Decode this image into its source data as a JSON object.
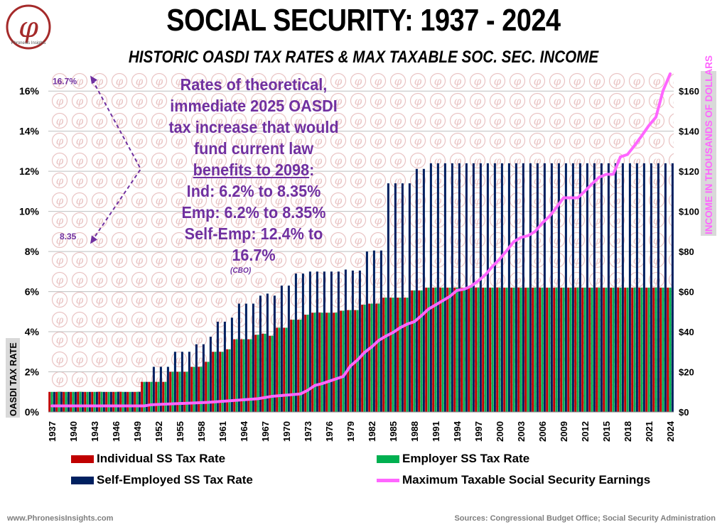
{
  "title": "SOCIAL SECURITY: 1937 - 2024",
  "subtitle": "HISTORIC OASDI TAX RATES & MAX TAXABLE SOC. SEC. INCOME",
  "logo": {
    "symbol": "φ",
    "text": "Phronesis Insights"
  },
  "annotation": {
    "lines": [
      "Rates of theoretical,",
      "immediate 2025 OASDI",
      "tax increase that would",
      "fund current law"
    ],
    "underlined": "benefits to 2098",
    "underlined_suffix": ":",
    "ind": "Ind: 6.2% to 8.35%",
    "emp": "Emp: 6.2% to 8.35%",
    "self": "Self-Emp: 12.4% to 16.7%",
    "source": "(CBO)",
    "marker_top": "16.7%",
    "marker_bottom": "8.35"
  },
  "legend": {
    "individual": "Individual SS Tax Rate",
    "employer": "Employer SS Tax Rate",
    "self": "Self-Employed SS Tax Rate",
    "max": "Maximum Taxable Social Security Earnings"
  },
  "footer": {
    "left": "www.PhronesisInsights.com",
    "right": "Sources: Congressional Budget Office; Social Security Administration"
  },
  "colors": {
    "individual": "#c00000",
    "employer": "#00b050",
    "self": "#002060",
    "max": "#ff66ff",
    "purple": "#7030a0"
  },
  "chart_data": {
    "type": "bar",
    "title": "SOCIAL SECURITY: 1937 - 2024",
    "ylabel": "OASDI TAX RATE",
    "y2label": "INCOME  IN THOUSANDS OF DOLLARS",
    "ylim": [
      0,
      17
    ],
    "y2lim": [
      0,
      170
    ],
    "yticks": [
      "0%",
      "2%",
      "4%",
      "6%",
      "8%",
      "10%",
      "12%",
      "14%",
      "16%"
    ],
    "y2ticks": [
      "$0",
      "$20",
      "$40",
      "$60",
      "$80",
      "$100",
      "$120",
      "$140",
      "$160"
    ],
    "xticks": [
      "1937",
      "1940",
      "1943",
      "1946",
      "1949",
      "1952",
      "1955",
      "1958",
      "1961",
      "1964",
      "1967",
      "1970",
      "1973",
      "1976",
      "1979",
      "1982",
      "1985",
      "1988",
      "1991",
      "1994",
      "1997",
      "2000",
      "2003",
      "2006",
      "2009",
      "2012",
      "2015",
      "2018",
      "2021",
      "2024"
    ],
    "start_year": 1937,
    "end_year": 2024,
    "rate_changes": [
      {
        "from": 1937,
        "ind": 1.0,
        "self": 1.0
      },
      {
        "from": 1950,
        "ind": 1.5,
        "self": 1.5
      },
      {
        "from": 1951,
        "ind": 1.5,
        "self": 2.25
      },
      {
        "from": 1954,
        "ind": 2.0,
        "self": 3.0
      },
      {
        "from": 1957,
        "ind": 2.25,
        "self": 3.375
      },
      {
        "from": 1959,
        "ind": 2.5,
        "self": 3.75
      },
      {
        "from": 1960,
        "ind": 3.0,
        "self": 4.5
      },
      {
        "from": 1962,
        "ind": 3.125,
        "self": 4.7
      },
      {
        "from": 1963,
        "ind": 3.625,
        "self": 5.4
      },
      {
        "from": 1966,
        "ind": 3.85,
        "self": 5.8
      },
      {
        "from": 1967,
        "ind": 3.9,
        "self": 5.9
      },
      {
        "from": 1968,
        "ind": 3.8,
        "self": 5.8
      },
      {
        "from": 1969,
        "ind": 4.2,
        "self": 6.3
      },
      {
        "from": 1971,
        "ind": 4.6,
        "self": 6.9
      },
      {
        "from": 1973,
        "ind": 4.85,
        "self": 7.0
      },
      {
        "from": 1974,
        "ind": 4.95,
        "self": 7.0
      },
      {
        "from": 1978,
        "ind": 5.05,
        "self": 7.1
      },
      {
        "from": 1979,
        "ind": 5.08,
        "self": 7.05
      },
      {
        "from": 1981,
        "ind": 5.35,
        "self": 8.0
      },
      {
        "from": 1982,
        "ind": 5.4,
        "self": 8.05
      },
      {
        "from": 1984,
        "ind": 5.7,
        "self": 11.4
      },
      {
        "from": 1988,
        "ind": 6.06,
        "self": 12.12
      },
      {
        "from": 1990,
        "ind": 6.2,
        "self": 12.4
      }
    ],
    "max_taxable": [
      {
        "year": 1937,
        "value": 3.0
      },
      {
        "year": 1950,
        "value": 3.0
      },
      {
        "year": 1951,
        "value": 3.6
      },
      {
        "year": 1955,
        "value": 4.2
      },
      {
        "year": 1959,
        "value": 4.8
      },
      {
        "year": 1966,
        "value": 6.6
      },
      {
        "year": 1968,
        "value": 7.8
      },
      {
        "year": 1972,
        "value": 9.0
      },
      {
        "year": 1973,
        "value": 10.8
      },
      {
        "year": 1974,
        "value": 13.2
      },
      {
        "year": 1975,
        "value": 14.1
      },
      {
        "year": 1976,
        "value": 15.3
      },
      {
        "year": 1977,
        "value": 16.5
      },
      {
        "year": 1978,
        "value": 17.7
      },
      {
        "year": 1979,
        "value": 22.9
      },
      {
        "year": 1980,
        "value": 25.9
      },
      {
        "year": 1981,
        "value": 29.7
      },
      {
        "year": 1982,
        "value": 32.4
      },
      {
        "year": 1983,
        "value": 35.7
      },
      {
        "year": 1984,
        "value": 37.8
      },
      {
        "year": 1985,
        "value": 39.6
      },
      {
        "year": 1986,
        "value": 42.0
      },
      {
        "year": 1987,
        "value": 43.8
      },
      {
        "year": 1988,
        "value": 45.0
      },
      {
        "year": 1989,
        "value": 48.0
      },
      {
        "year": 1990,
        "value": 51.3
      },
      {
        "year": 1991,
        "value": 53.4
      },
      {
        "year": 1992,
        "value": 55.5
      },
      {
        "year": 1993,
        "value": 57.6
      },
      {
        "year": 1994,
        "value": 60.6
      },
      {
        "year": 1995,
        "value": 61.2
      },
      {
        "year": 1996,
        "value": 62.7
      },
      {
        "year": 1997,
        "value": 65.4
      },
      {
        "year": 1998,
        "value": 68.4
      },
      {
        "year": 1999,
        "value": 72.6
      },
      {
        "year": 2000,
        "value": 76.2
      },
      {
        "year": 2001,
        "value": 80.4
      },
      {
        "year": 2002,
        "value": 84.9
      },
      {
        "year": 2003,
        "value": 87.0
      },
      {
        "year": 2004,
        "value": 87.9
      },
      {
        "year": 2005,
        "value": 90.0
      },
      {
        "year": 2006,
        "value": 94.2
      },
      {
        "year": 2007,
        "value": 97.5
      },
      {
        "year": 2008,
        "value": 102.0
      },
      {
        "year": 2009,
        "value": 106.8
      },
      {
        "year": 2010,
        "value": 106.8
      },
      {
        "year": 2011,
        "value": 106.8
      },
      {
        "year": 2012,
        "value": 110.1
      },
      {
        "year": 2013,
        "value": 113.7
      },
      {
        "year": 2014,
        "value": 117.0
      },
      {
        "year": 2015,
        "value": 118.5
      },
      {
        "year": 2016,
        "value": 118.5
      },
      {
        "year": 2017,
        "value": 127.2
      },
      {
        "year": 2018,
        "value": 128.4
      },
      {
        "year": 2019,
        "value": 132.9
      },
      {
        "year": 2020,
        "value": 137.7
      },
      {
        "year": 2021,
        "value": 142.8
      },
      {
        "year": 2022,
        "value": 147.0
      },
      {
        "year": 2023,
        "value": 160.2
      },
      {
        "year": 2024,
        "value": 168.6
      }
    ],
    "legend_position": "bottom"
  }
}
